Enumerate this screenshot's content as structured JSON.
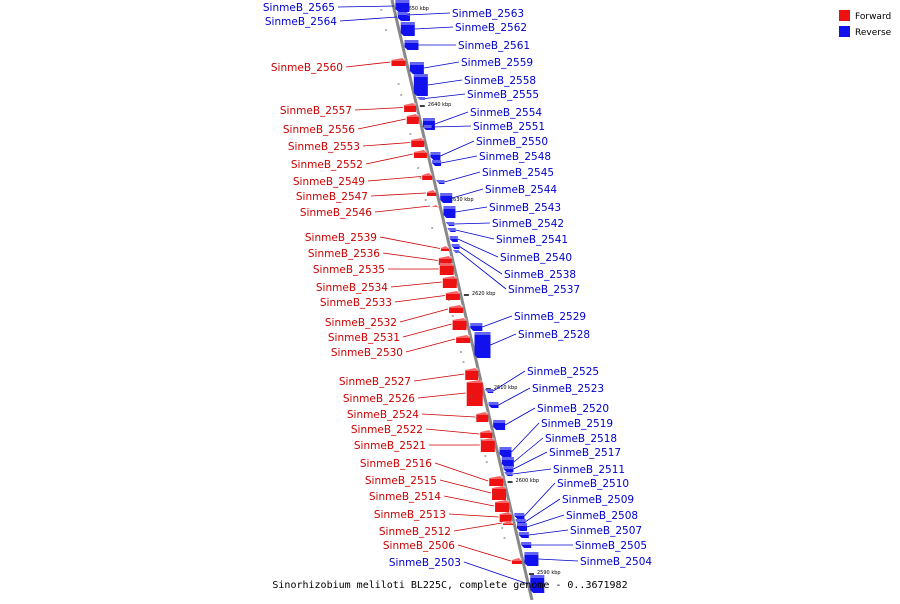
{
  "caption": "Sinorhizobium meliloti BL225C, complete genome - 0..3671982",
  "legend": [
    {
      "label": "Forward",
      "color": "#ee1111"
    },
    {
      "label": "Reverse",
      "color": "#1111ee"
    }
  ],
  "colors": {
    "forward": "#ee1111",
    "reverse": "#1111ee",
    "forward_text": "#cc0000",
    "reverse_text": "#0000cc",
    "backbone": "#888888"
  },
  "ticks": [
    "2650 kbp",
    "2640 kbp",
    "2630 kbp",
    "2620 kbp",
    "2610 kbp",
    "2600 kbp",
    "2590 kbp"
  ],
  "forward_labels": [
    "SinmeB_2560",
    "SinmeB_2557",
    "SinmeB_2556",
    "SinmeB_2553",
    "SinmeB_2552",
    "SinmeB_2549",
    "SinmeB_2547",
    "SinmeB_2546",
    "SinmeB_2539",
    "SinmeB_2536",
    "SinmeB_2535",
    "SinmeB_2534",
    "SinmeB_2533",
    "SinmeB_2532",
    "SinmeB_2531",
    "SinmeB_2530",
    "SinmeB_2527",
    "SinmeB_2526",
    "SinmeB_2524",
    "SinmeB_2522",
    "SinmeB_2521",
    "SinmeB_2516",
    "SinmeB_2515",
    "SinmeB_2514",
    "SinmeB_2513",
    "SinmeB_2512",
    "SinmeB_2506"
  ],
  "reverse_labels_left": [
    "SinmeB_2565",
    "SinmeB_2564",
    "SinmeB_2503"
  ],
  "reverse_labels_right": [
    "SinmeB_2563",
    "SinmeB_2562",
    "SinmeB_2561",
    "SinmeB_2559",
    "SinmeB_2558",
    "SinmeB_2555",
    "SinmeB_2554",
    "SinmeB_2551",
    "SinmeB_2550",
    "SinmeB_2548",
    "SinmeB_2545",
    "SinmeB_2544",
    "SinmeB_2543",
    "SinmeB_2542",
    "SinmeB_2541",
    "SinmeB_2540",
    "SinmeB_2538",
    "SinmeB_2537",
    "SinmeB_2529",
    "SinmeB_2528",
    "SinmeB_2525",
    "SinmeB_2523",
    "SinmeB_2520",
    "SinmeB_2519",
    "SinmeB_2518",
    "SinmeB_2517",
    "SinmeB_2511",
    "SinmeB_2510",
    "SinmeB_2509",
    "SinmeB_2508",
    "SinmeB_2507",
    "SinmeB_2505",
    "SinmeB_2504"
  ]
}
